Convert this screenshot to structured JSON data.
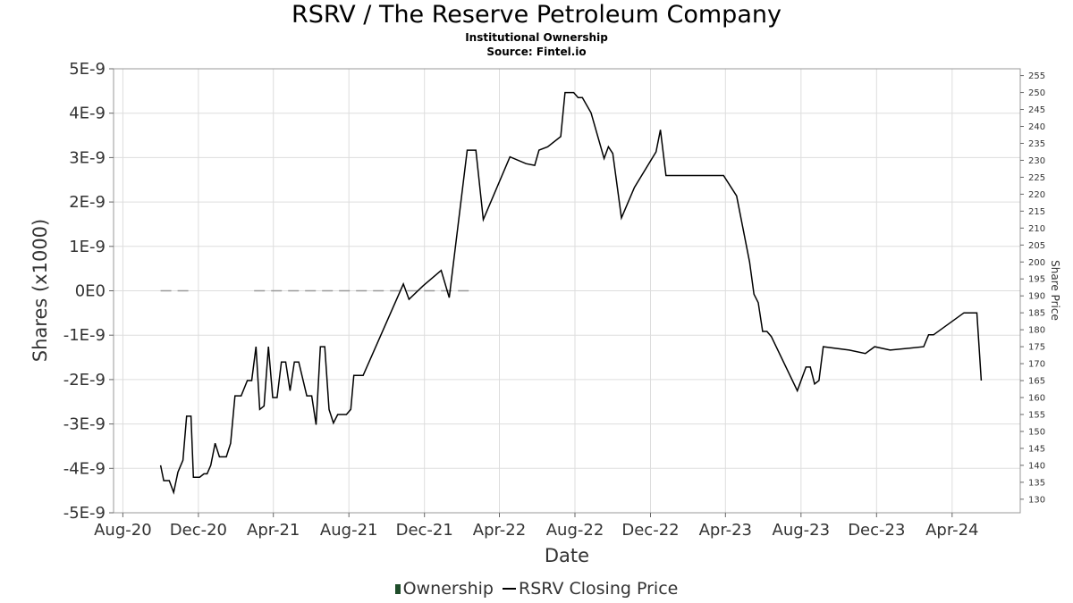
{
  "header": {
    "title": "RSRV / The Reserve Petroleum Company",
    "subtitle": "Institutional Ownership",
    "source": "Source: Fintel.io"
  },
  "legend": {
    "ownership_label": "Ownership",
    "price_label": "RSRV Closing Price"
  },
  "chart_data": {
    "type": "line",
    "title": "RSRV / The Reserve Petroleum Company",
    "xlabel": "Date",
    "ylabel": "Shares (x1000)",
    "y2label": "Share Price",
    "xlim": [
      "2020-07-17",
      "2024-07-20"
    ],
    "ylim": [
      -5e-09,
      5e-09
    ],
    "y2lim": [
      126,
      257
    ],
    "x_ticks": [
      {
        "date": "2020-08-01",
        "label": "Aug-20"
      },
      {
        "date": "2020-12-01",
        "label": "Dec-20"
      },
      {
        "date": "2021-04-01",
        "label": "Apr-21"
      },
      {
        "date": "2021-08-01",
        "label": "Aug-21"
      },
      {
        "date": "2021-12-01",
        "label": "Dec-21"
      },
      {
        "date": "2022-04-01",
        "label": "Apr-22"
      },
      {
        "date": "2022-08-01",
        "label": "Aug-22"
      },
      {
        "date": "2022-12-01",
        "label": "Dec-22"
      },
      {
        "date": "2023-04-01",
        "label": "Apr-23"
      },
      {
        "date": "2023-08-01",
        "label": "Aug-23"
      },
      {
        "date": "2023-12-01",
        "label": "Dec-23"
      },
      {
        "date": "2024-04-01",
        "label": "Apr-24"
      }
    ],
    "y_ticks": [
      {
        "value": 5e-09,
        "label": "5E-9"
      },
      {
        "value": 4e-09,
        "label": "4E-9"
      },
      {
        "value": 3e-09,
        "label": "3E-9"
      },
      {
        "value": 2e-09,
        "label": "2E-9"
      },
      {
        "value": 1e-09,
        "label": "1E-9"
      },
      {
        "value": 0,
        "label": "0E0"
      },
      {
        "value": -1e-09,
        "label": "-1E-9"
      },
      {
        "value": -2e-09,
        "label": "-2E-9"
      },
      {
        "value": -3e-09,
        "label": "-3E-9"
      },
      {
        "value": -4e-09,
        "label": "-4E-9"
      },
      {
        "value": -5e-09,
        "label": "-5E-9"
      }
    ],
    "y2_ticks": [
      130,
      135,
      140,
      145,
      150,
      155,
      160,
      165,
      170,
      175,
      180,
      185,
      190,
      195,
      200,
      205,
      210,
      215,
      220,
      225,
      230,
      235,
      240,
      245,
      250,
      255
    ],
    "grid": true,
    "legend_position": "bottom",
    "series": [
      {
        "name": "Ownership",
        "axis": "left",
        "color": "#999999",
        "style": "dashed",
        "segments": [
          [
            [
              "2020-10-01",
              0
            ],
            [
              "2020-11-15",
              0
            ]
          ],
          [
            [
              "2021-03-01",
              0
            ],
            [
              "2022-02-15",
              0
            ]
          ]
        ]
      },
      {
        "name": "RSRV Closing Price",
        "axis": "right",
        "color": "#000000",
        "style": "solid",
        "points": [
          [
            "2020-10-01",
            140
          ],
          [
            "2020-10-06",
            135.5
          ],
          [
            "2020-10-15",
            135.5
          ],
          [
            "2020-10-22",
            132
          ],
          [
            "2020-10-29",
            138
          ],
          [
            "2020-11-06",
            141.5
          ],
          [
            "2020-11-12",
            154.5
          ],
          [
            "2020-11-19",
            154.5
          ],
          [
            "2020-11-23",
            136.5
          ],
          [
            "2020-12-03",
            136.5
          ],
          [
            "2020-12-10",
            137.5
          ],
          [
            "2020-12-15",
            137.5
          ],
          [
            "2020-12-21",
            140
          ],
          [
            "2020-12-28",
            146.5
          ],
          [
            "2021-01-04",
            142.5
          ],
          [
            "2021-01-15",
            142.5
          ],
          [
            "2021-01-22",
            146.5
          ],
          [
            "2021-01-29",
            160.5
          ],
          [
            "2021-02-08",
            160.5
          ],
          [
            "2021-02-18",
            165
          ],
          [
            "2021-02-25",
            165
          ],
          [
            "2021-03-04",
            175
          ],
          [
            "2021-03-10",
            156.5
          ],
          [
            "2021-03-17",
            157.5
          ],
          [
            "2021-03-24",
            175
          ],
          [
            "2021-03-31",
            160
          ],
          [
            "2021-04-07",
            160
          ],
          [
            "2021-04-14",
            170.5
          ],
          [
            "2021-04-21",
            170.5
          ],
          [
            "2021-04-28",
            162
          ],
          [
            "2021-05-05",
            170.5
          ],
          [
            "2021-05-12",
            170.5
          ],
          [
            "2021-05-25",
            160.5
          ],
          [
            "2021-06-02",
            160.5
          ],
          [
            "2021-06-09",
            152
          ],
          [
            "2021-06-16",
            175
          ],
          [
            "2021-06-23",
            175
          ],
          [
            "2021-06-30",
            156.5
          ],
          [
            "2021-07-07",
            152.5
          ],
          [
            "2021-07-14",
            155
          ],
          [
            "2021-07-21",
            155
          ],
          [
            "2021-07-28",
            155
          ],
          [
            "2021-08-04",
            156.5
          ],
          [
            "2021-08-09",
            166.5
          ],
          [
            "2021-08-24",
            166.5
          ],
          [
            "2021-10-28",
            193.5
          ],
          [
            "2021-11-06",
            189
          ],
          [
            "2021-11-29",
            193
          ],
          [
            "2021-12-28",
            197.5
          ],
          [
            "2022-01-10",
            189.5
          ],
          [
            "2022-02-08",
            233
          ],
          [
            "2022-02-22",
            233
          ],
          [
            "2022-03-06",
            212.5
          ],
          [
            "2022-04-18",
            231
          ],
          [
            "2022-05-14",
            229
          ],
          [
            "2022-05-28",
            228.5
          ],
          [
            "2022-06-04",
            233
          ],
          [
            "2022-06-18",
            234
          ],
          [
            "2022-07-09",
            237
          ],
          [
            "2022-07-16",
            250
          ],
          [
            "2022-07-30",
            250
          ],
          [
            "2022-08-06",
            248.5
          ],
          [
            "2022-08-13",
            248.5
          ],
          [
            "2022-08-27",
            244
          ],
          [
            "2022-09-17",
            230.5
          ],
          [
            "2022-09-24",
            234
          ],
          [
            "2022-10-01",
            232
          ],
          [
            "2022-10-15",
            213
          ],
          [
            "2022-11-05",
            222
          ],
          [
            "2022-12-10",
            232.5
          ],
          [
            "2022-12-17",
            239
          ],
          [
            "2022-12-26",
            225.5
          ],
          [
            "2023-02-15",
            225.5
          ],
          [
            "2023-03-29",
            225.5
          ],
          [
            "2023-04-19",
            219.5
          ],
          [
            "2023-05-10",
            200
          ],
          [
            "2023-05-17",
            190.5
          ],
          [
            "2023-05-24",
            188
          ],
          [
            "2023-05-31",
            179.5
          ],
          [
            "2023-06-07",
            179.5
          ],
          [
            "2023-06-14",
            178
          ],
          [
            "2023-07-26",
            162
          ],
          [
            "2023-08-09",
            169
          ],
          [
            "2023-08-16",
            169
          ],
          [
            "2023-08-23",
            164
          ],
          [
            "2023-08-30",
            165
          ],
          [
            "2023-09-06",
            175
          ],
          [
            "2023-10-18",
            174
          ],
          [
            "2023-11-13",
            173
          ],
          [
            "2023-11-28",
            175
          ],
          [
            "2023-12-23",
            174
          ],
          [
            "2024-02-15",
            175
          ],
          [
            "2024-02-23",
            178.5
          ],
          [
            "2024-03-02",
            178.5
          ],
          [
            "2024-04-20",
            185
          ],
          [
            "2024-05-11",
            185
          ],
          [
            "2024-05-18",
            165
          ]
        ]
      }
    ]
  }
}
